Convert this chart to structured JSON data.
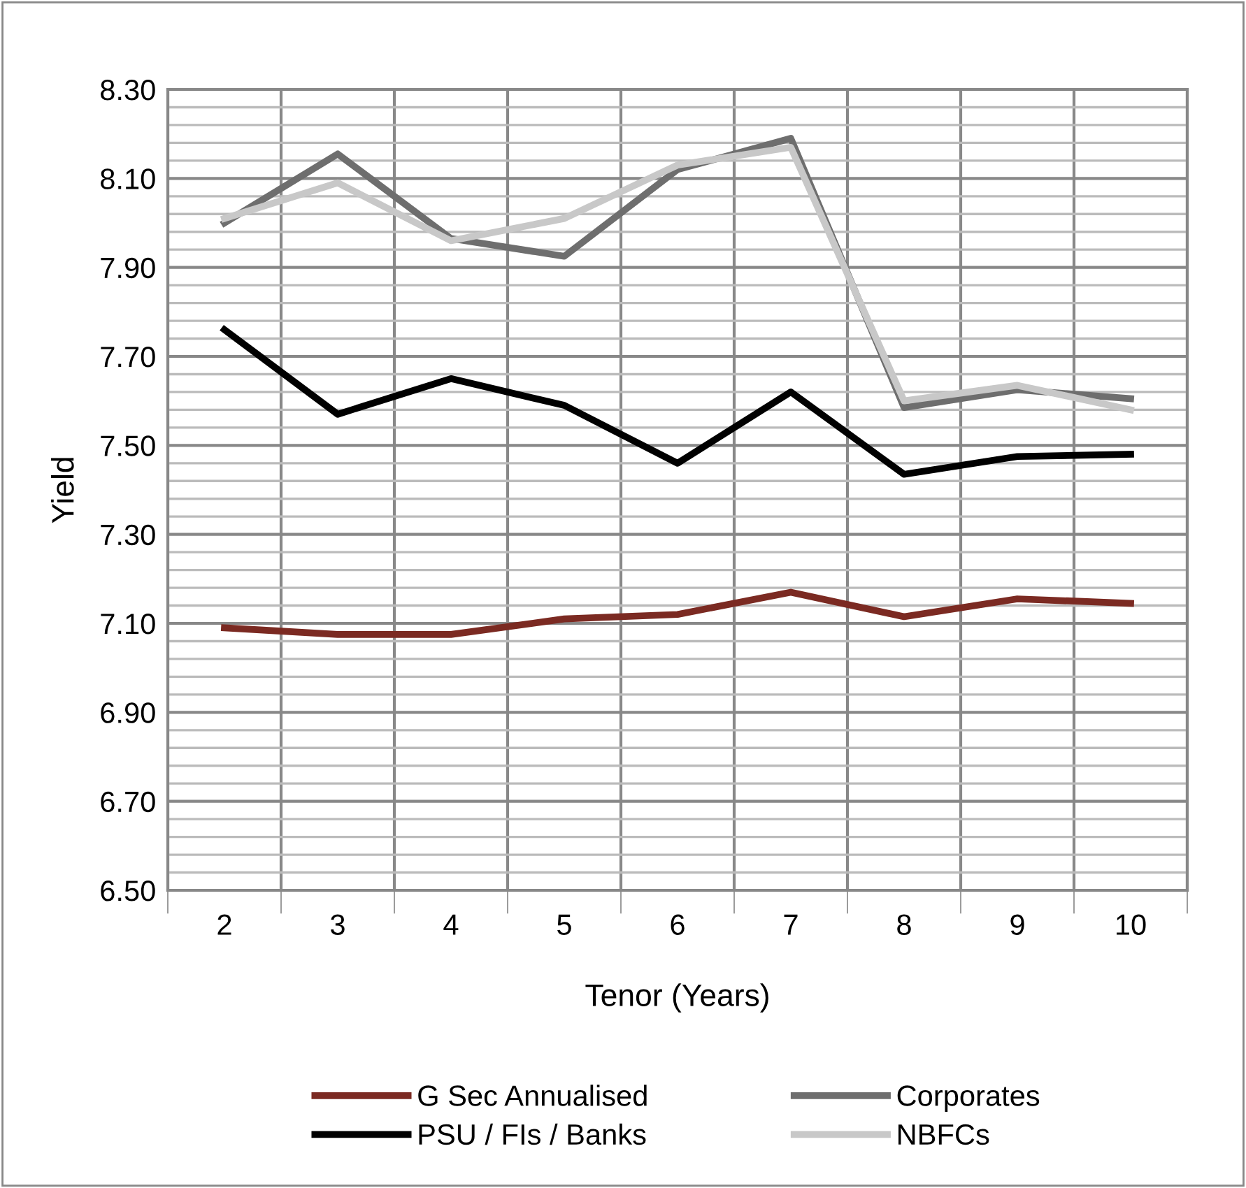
{
  "chart_data": {
    "type": "line",
    "xlabel": "Tenor (Years)",
    "ylabel": "Yield",
    "categories": [
      "2",
      "3",
      "4",
      "5",
      "6",
      "7",
      "8",
      "9",
      "10"
    ],
    "series": [
      {
        "name": "G Sec Annualised",
        "color": "#7b2a22",
        "values": [
          7.09,
          7.075,
          7.075,
          7.11,
          7.12,
          7.17,
          7.115,
          7.155,
          7.145
        ]
      },
      {
        "name": "PSU / FIs / Banks",
        "color": "#000000",
        "values": [
          7.76,
          7.57,
          7.65,
          7.59,
          7.46,
          7.62,
          7.435,
          7.475,
          7.48
        ]
      },
      {
        "name": "Corporates",
        "color": "#6e6e6e",
        "values": [
          8.0,
          8.155,
          7.965,
          7.925,
          8.12,
          8.19,
          7.585,
          7.625,
          7.605
        ]
      },
      {
        "name": "NBFCs",
        "color": "#c8c8c8",
        "values": [
          8.01,
          8.09,
          7.96,
          8.01,
          8.13,
          8.17,
          7.6,
          7.635,
          7.58
        ]
      }
    ],
    "ylim": [
      6.5,
      8.3
    ],
    "yticks": [
      {
        "value": 6.5,
        "label": "6.50"
      },
      {
        "value": 6.7,
        "label": "6.70"
      },
      {
        "value": 6.9,
        "label": "6.90"
      },
      {
        "value": 7.1,
        "label": "7.10"
      },
      {
        "value": 7.3,
        "label": "7.30"
      },
      {
        "value": 7.5,
        "label": "7.50"
      },
      {
        "value": 7.7,
        "label": "7.70"
      },
      {
        "value": 7.9,
        "label": "7.90"
      },
      {
        "value": 8.1,
        "label": "8.10"
      },
      {
        "value": 8.3,
        "label": "8.30"
      }
    ],
    "grid": true,
    "legend": "bottom",
    "marker": "none",
    "line_style": "solid"
  }
}
